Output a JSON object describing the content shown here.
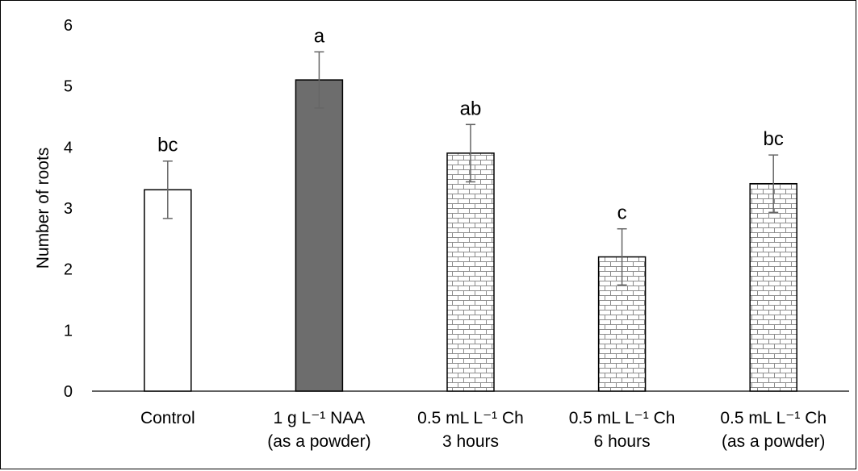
{
  "chart_data": {
    "type": "bar",
    "title": "",
    "xlabel": "",
    "ylabel": "Number of roots",
    "ylim": [
      0,
      6
    ],
    "yticks": [
      0,
      1,
      2,
      3,
      4,
      5,
      6
    ],
    "grid": false,
    "legend": "none",
    "categories": [
      [
        "Control"
      ],
      [
        "1 g L⁻¹ NAA",
        "(as a powder)"
      ],
      [
        "0.5 mL L⁻¹ Ch",
        "3 hours"
      ],
      [
        "0.5 mL L⁻¹ Ch",
        "6 hours"
      ],
      [
        "0.5 mL L⁻¹ Ch",
        "(as a powder)"
      ]
    ],
    "values": [
      3.3,
      5.1,
      3.9,
      2.2,
      3.4
    ],
    "errors": [
      0.47,
      0.46,
      0.47,
      0.46,
      0.47
    ],
    "significance": [
      "bc",
      "a",
      "ab",
      "c",
      "bc"
    ],
    "fills": [
      "white",
      "solid",
      "brick",
      "brick",
      "brick"
    ],
    "colors": {
      "solid": "#6d6d6d",
      "outline": "#000000",
      "brick": "#8c8c8c",
      "error": "#666666"
    }
  }
}
